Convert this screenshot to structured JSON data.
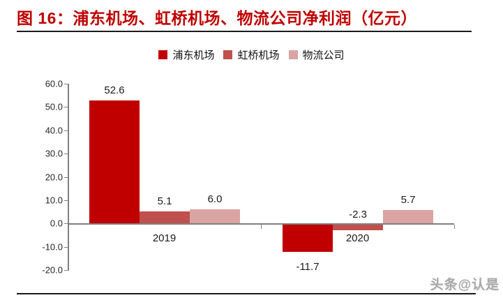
{
  "header": {
    "title": "图 16：浦东机场、虹桥机场、物流公司净利润（亿元）"
  },
  "watermark": {
    "text": "头条@认是"
  },
  "chart_data": {
    "type": "bar",
    "title": "图 16：浦东机场、虹桥机场、物流公司净利润（亿元）",
    "categories": [
      "2019",
      "2020"
    ],
    "series": [
      {
        "name": "浦东机场",
        "color": "#C00000",
        "values": [
          52.6,
          -11.7
        ],
        "labels": [
          "52.6",
          "-11.7"
        ]
      },
      {
        "name": "虹桥机场",
        "color": "#C0504D",
        "values": [
          5.1,
          -2.3
        ],
        "labels": [
          "5.1",
          "-2.3"
        ]
      },
      {
        "name": "物流公司",
        "color": "#DAA4A2",
        "values": [
          6.0,
          5.7
        ],
        "labels": [
          "6.0",
          "5.7"
        ]
      }
    ],
    "xlabel": "",
    "ylabel": "",
    "ylim": [
      -20,
      60
    ],
    "ytick_step": 10,
    "ytick_labels": [
      "60.0",
      "50.0",
      "40.0",
      "30.0",
      "20.0",
      "10.0",
      "0.0",
      "-10.0",
      "-20.0"
    ],
    "legend_position": "top",
    "grid": false,
    "axis_color": "#808080",
    "text_color": "#1a1a1a"
  }
}
